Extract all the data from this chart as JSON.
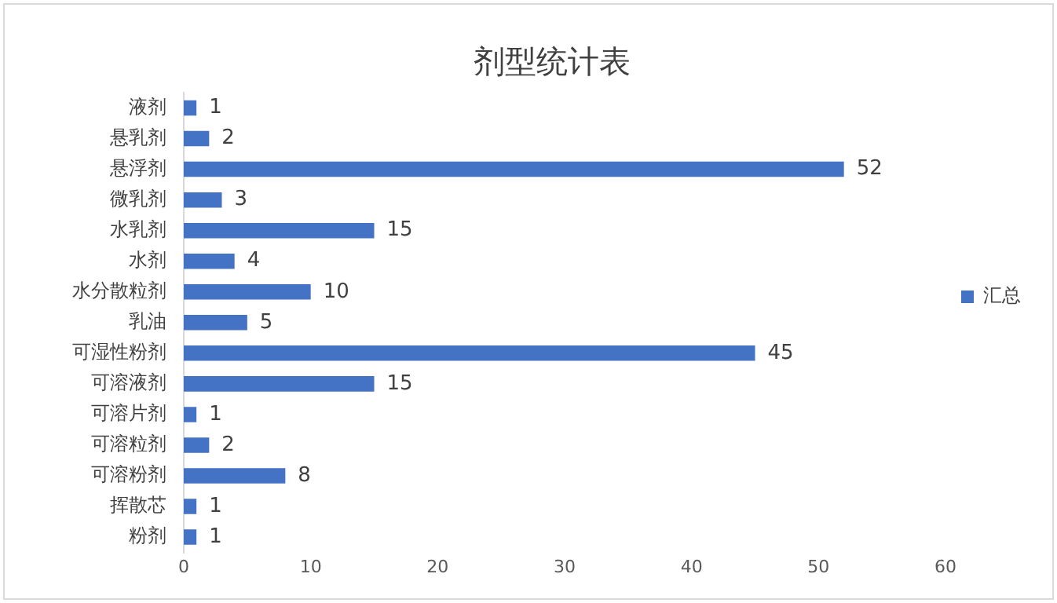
{
  "chart_data": {
    "type": "bar",
    "orientation": "horizontal",
    "title": "剂型统计表",
    "categories": [
      "液剂",
      "悬乳剂",
      "悬浮剂",
      "微乳剂",
      "水乳剂",
      "水剂",
      "水分散粒剂",
      "乳油",
      "可湿性粉剂",
      "可溶液剂",
      "可溶片剂",
      "可溶粒剂",
      "可溶粉剂",
      "挥散芯",
      "粉剂"
    ],
    "series": [
      {
        "name": "汇总",
        "color": "#4472c4",
        "values": [
          1,
          2,
          52,
          3,
          15,
          4,
          10,
          5,
          45,
          15,
          1,
          2,
          8,
          1,
          1
        ]
      }
    ],
    "xlim": [
      0,
      60
    ],
    "xticks": [
      0,
      10,
      20,
      30,
      40,
      50,
      60
    ],
    "grid": false,
    "legend": "right",
    "data_labels": true
  }
}
